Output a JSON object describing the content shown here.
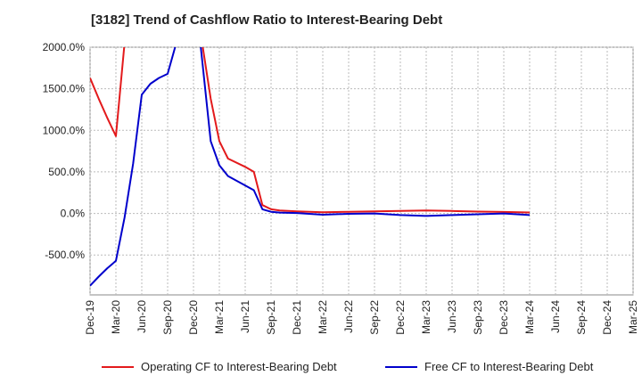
{
  "title": "[3182]  Trend of Cashflow Ratio to Interest-Bearing Debt",
  "chart_data": {
    "type": "line",
    "title": "[3182]  Trend of Cashflow Ratio to Interest-Bearing Debt",
    "xlabel": "",
    "ylabel": "",
    "y_ticks": [
      -500,
      0,
      500,
      1000,
      1500,
      2000
    ],
    "y_tick_labels": [
      "-500.0%",
      "0.0%",
      "500.0%",
      "1000.0%",
      "1500.0%",
      "2000.0%"
    ],
    "ylim": [
      -980,
      2000
    ],
    "x_tick_labels": [
      "Dec-19",
      "Mar-20",
      "Jun-20",
      "Sep-20",
      "Dec-20",
      "Mar-21",
      "Jun-21",
      "Sep-21",
      "Dec-21",
      "Mar-22",
      "Jun-22",
      "Sep-22",
      "Dec-22",
      "Mar-23",
      "Jun-23",
      "Sep-23",
      "Dec-23",
      "Mar-24",
      "Jun-24",
      "Sep-24",
      "Dec-24",
      "Mar-25"
    ],
    "grid": true,
    "legend_position": "bottom",
    "series": [
      {
        "name": "Operating CF to Interest-Bearing Debt",
        "color": "#e31a1c",
        "points": [
          [
            0,
            1630
          ],
          [
            1,
            1380
          ],
          [
            2,
            1150
          ],
          [
            3,
            930
          ],
          [
            4,
            2050
          ],
          [
            null,
            null
          ],
          [
            13,
            2050
          ],
          [
            14,
            1380
          ],
          [
            15,
            870
          ],
          [
            16,
            660
          ],
          [
            18,
            560
          ],
          [
            19,
            500
          ],
          [
            20,
            100
          ],
          [
            21,
            50
          ],
          [
            22,
            35
          ],
          [
            24,
            25
          ],
          [
            27,
            15
          ],
          [
            30,
            20
          ],
          [
            33,
            25
          ],
          [
            36,
            30
          ],
          [
            39,
            35
          ],
          [
            42,
            30
          ],
          [
            45,
            22
          ],
          [
            48,
            18
          ],
          [
            51,
            12
          ]
        ]
      },
      {
        "name": "Free CF to Interest-Bearing Debt",
        "color": "#0000cc",
        "points": [
          [
            0,
            -870
          ],
          [
            1,
            -760
          ],
          [
            2,
            -660
          ],
          [
            3,
            -570
          ],
          [
            4,
            -50
          ],
          [
            5,
            600
          ],
          [
            6,
            1430
          ],
          [
            7,
            1560
          ],
          [
            8,
            1630
          ],
          [
            9,
            1680
          ],
          [
            10,
            2050
          ],
          [
            null,
            null
          ],
          [
            12.8,
            2050
          ],
          [
            14,
            870
          ],
          [
            15,
            580
          ],
          [
            16,
            450
          ],
          [
            19,
            280
          ],
          [
            20,
            50
          ],
          [
            21,
            20
          ],
          [
            22,
            10
          ],
          [
            24,
            5
          ],
          [
            27,
            -15
          ],
          [
            30,
            -5
          ],
          [
            33,
            0
          ],
          [
            36,
            -20
          ],
          [
            39,
            -30
          ],
          [
            42,
            -20
          ],
          [
            45,
            -10
          ],
          [
            48,
            0
          ],
          [
            51,
            -20
          ]
        ]
      }
    ]
  }
}
